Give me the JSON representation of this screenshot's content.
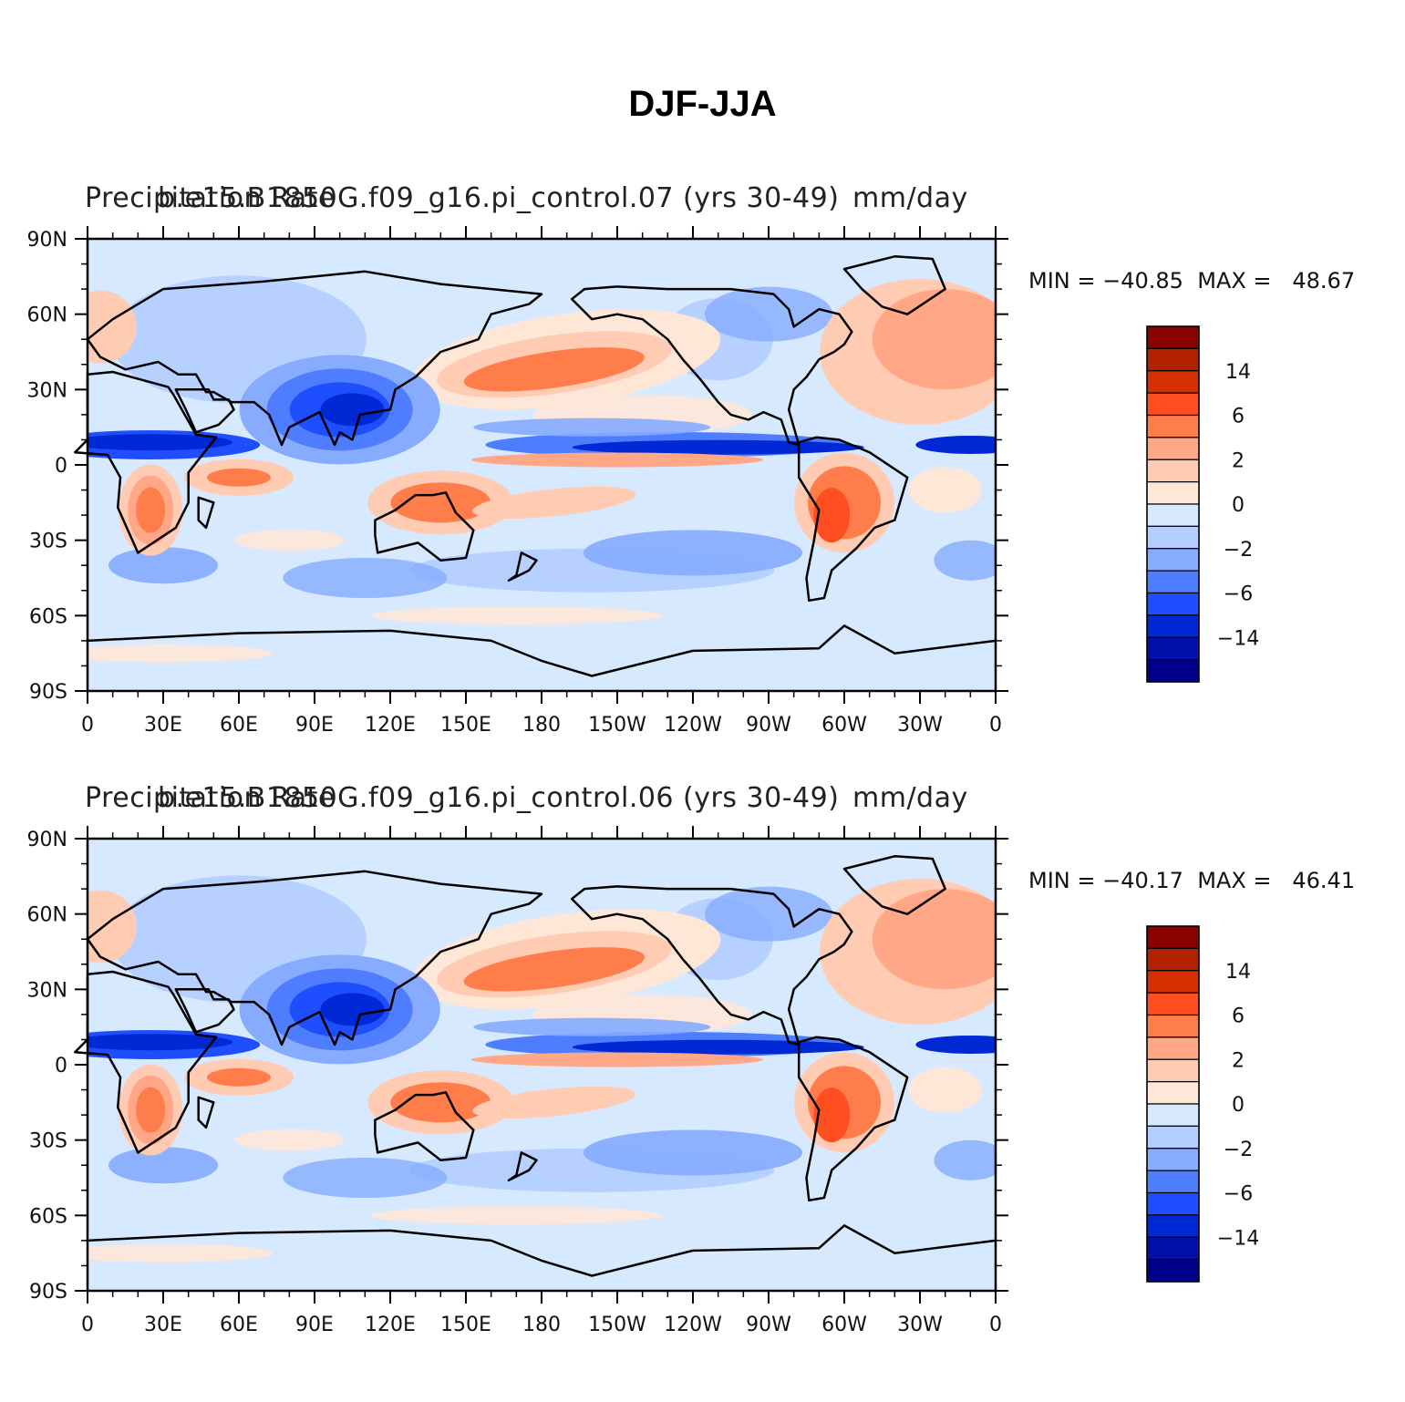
{
  "figure_title": "DJF-JJA",
  "chart_data": [
    {
      "type": "heatmap",
      "title_left": "Precipitation Rate",
      "title_center": "b.e15.B1850G.f09_g16.pi_control.07 (yrs 30-49)",
      "title_right": "mm/day",
      "min_label": "MIN = −40.85",
      "max_label": "MAX =   48.67",
      "min": -40.85,
      "max": 48.67,
      "x_ticks": [
        "0",
        "30E",
        "60E",
        "90E",
        "120E",
        "150E",
        "180",
        "150W",
        "120W",
        "90W",
        "60W",
        "30W",
        "0"
      ],
      "y_ticks": [
        "90N",
        "60N",
        "30N",
        "0",
        "30S",
        "60S",
        "90S"
      ],
      "xlim": [
        0,
        360
      ],
      "ylim": [
        -90,
        90
      ],
      "colorbar_labels": [
        "14",
        "6",
        "2",
        "0",
        "−2",
        "−6",
        "−14"
      ]
    },
    {
      "type": "heatmap",
      "title_left": "Precipitation Rate",
      "title_center": "b.e15.B1850G.f09_g16.pi_control.06 (yrs 30-49)",
      "title_right": "mm/day",
      "min_label": "MIN = −40.17",
      "max_label": "MAX =   46.41",
      "min": -40.17,
      "max": 46.41,
      "x_ticks": [
        "0",
        "30E",
        "60E",
        "90E",
        "120E",
        "150E",
        "180",
        "150W",
        "120W",
        "90W",
        "60W",
        "30W",
        "0"
      ],
      "y_ticks": [
        "90N",
        "60N",
        "30N",
        "0",
        "30S",
        "60S",
        "90S"
      ],
      "xlim": [
        0,
        360
      ],
      "ylim": [
        -90,
        90
      ],
      "colorbar_labels": [
        "14",
        "6",
        "2",
        "0",
        "−2",
        "−6",
        "−14"
      ]
    }
  ],
  "colorbar_colors": [
    "#8b0000",
    "#b22200",
    "#d43000",
    "#ff4e1f",
    "#ff7d4a",
    "#ffa787",
    "#ffcbb3",
    "#ffe7d7",
    "#d7e9ff",
    "#b3ceff",
    "#86abff",
    "#4e7dff",
    "#1f4eff",
    "#0028d4",
    "#0010a8",
    "#00008b"
  ]
}
